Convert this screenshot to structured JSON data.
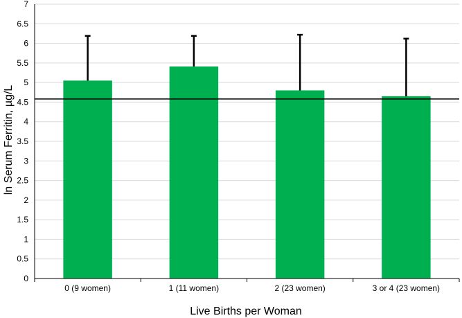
{
  "chart_data": {
    "type": "bar",
    "title": "",
    "xlabel": "Live Births per Woman",
    "ylabel": "ln Serum Ferritin, µg/L",
    "categories": [
      "0 (9 women)",
      "1 (11 women)",
      "2 (23 women)",
      "3 or 4 (23 women)"
    ],
    "values": [
      5.05,
      5.41,
      4.8,
      4.65
    ],
    "error_upper": [
      6.19,
      6.19,
      6.22,
      6.12
    ],
    "reference_line": 4.58,
    "ylim": [
      0,
      7
    ],
    "yticks": [
      "0",
      "0.5",
      "1",
      "1.5",
      "2",
      "2.5",
      "3",
      "3.5",
      "4",
      "4.5",
      "5",
      "5.5",
      "6",
      "6.5",
      "7"
    ],
    "grid": true,
    "legend": "none",
    "colors": {
      "bar": "#00b050",
      "grid": "#d9d9d9",
      "error": "#000000",
      "reference": "#000000"
    }
  }
}
